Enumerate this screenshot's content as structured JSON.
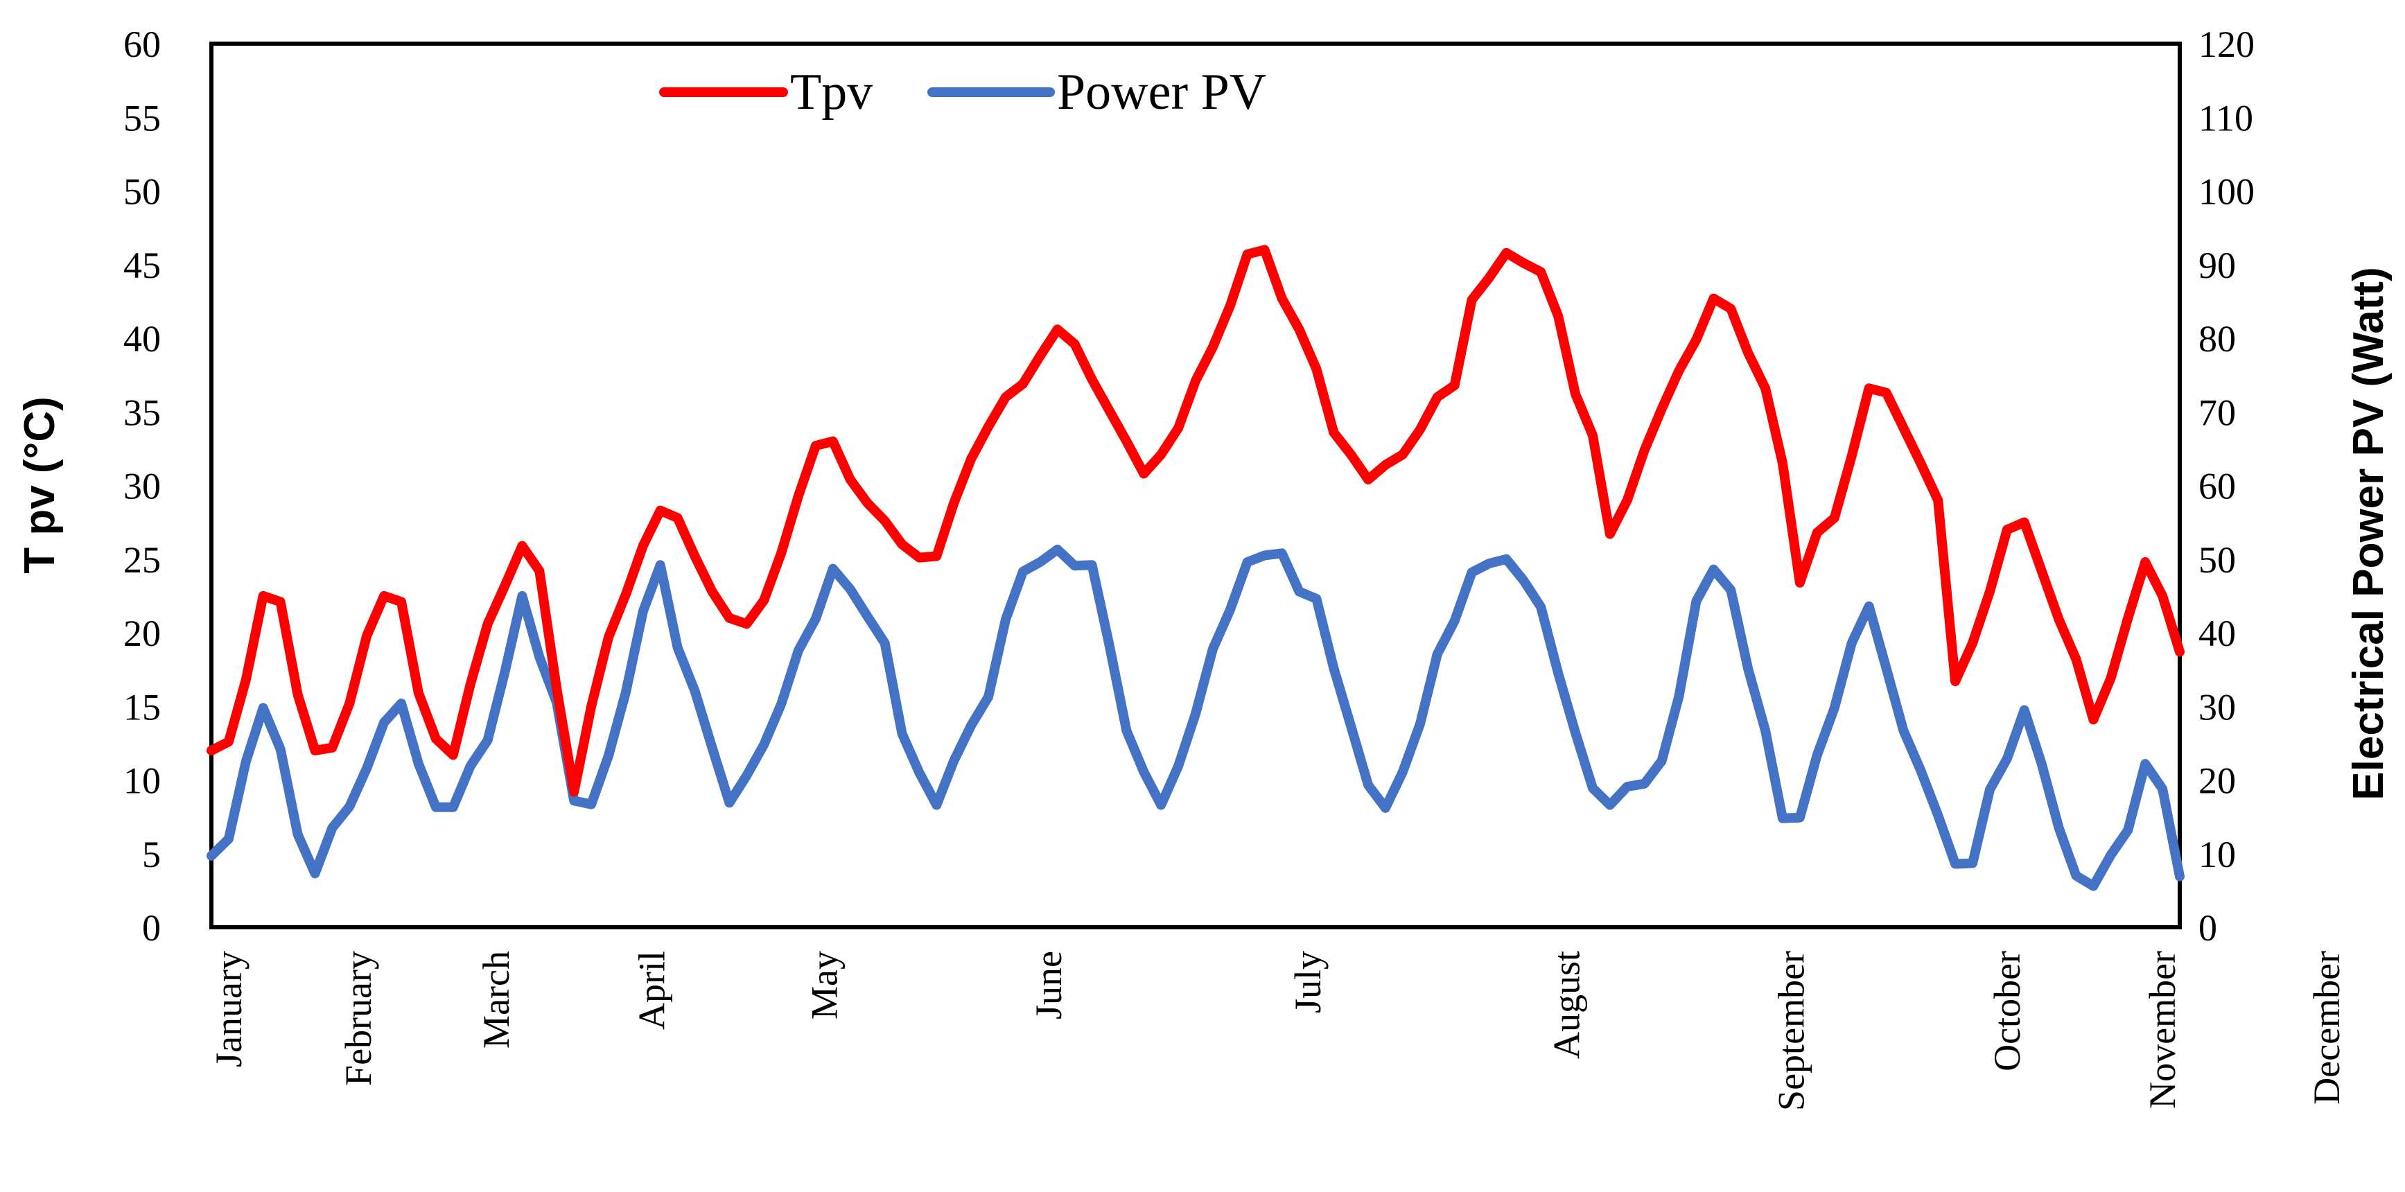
{
  "chart_data": {
    "type": "line",
    "ylabel": "T pv (°C)",
    "y2label": "Electrical Power PV (Watt)",
    "ylim": [
      0,
      60
    ],
    "y2lim": [
      0,
      120
    ],
    "yticks": [
      "0",
      "5",
      "10",
      "15",
      "20",
      "25",
      "30",
      "35",
      "40",
      "45",
      "50",
      "55",
      "60"
    ],
    "y2ticks": [
      "0",
      "10",
      "20",
      "30",
      "40",
      "50",
      "60",
      "70",
      "80",
      "90",
      "100",
      "110",
      "120"
    ],
    "months": [
      "January",
      "February",
      "March",
      "April",
      "May",
      "June",
      "July",
      "August",
      "September",
      "October",
      "November",
      "December"
    ],
    "month_positions": [
      1,
      8.5,
      16.5,
      25.5,
      35.5,
      48.5,
      63.5,
      78.5,
      91.5,
      104,
      113,
      122.5
    ],
    "grid": false,
    "legend_position": "top-center",
    "colors": {
      "tpv": "#ff0000",
      "power": "#4472c4"
    },
    "series": [
      {
        "name": "Tpv",
        "axis": "left",
        "values": [
          12.0,
          12.6,
          16.8,
          22.5,
          22.1,
          15.8,
          12.0,
          12.2,
          15.2,
          19.8,
          22.5,
          22.1,
          15.9,
          12.8,
          11.7,
          16.5,
          20.6,
          23.2,
          25.9,
          24.2,
          16.2,
          9.2,
          15.0,
          19.7,
          22.6,
          25.9,
          28.3,
          27.8,
          25.2,
          22.8,
          21.0,
          20.6,
          22.2,
          25.4,
          29.3,
          32.7,
          33.0,
          30.4,
          28.8,
          27.6,
          26.0,
          25.1,
          25.2,
          28.8,
          31.8,
          34.0,
          36.0,
          36.9,
          38.8,
          40.6,
          39.6,
          37.2,
          35.1,
          33.0,
          30.8,
          32.1,
          33.9,
          37.1,
          39.4,
          42.2,
          45.7,
          46.0,
          42.7,
          40.6,
          37.9,
          33.6,
          32.1,
          30.4,
          31.4,
          32.1,
          33.8,
          36.0,
          36.8,
          42.6,
          44.1,
          45.8,
          45.1,
          44.5,
          41.5,
          36.2,
          33.4,
          26.7,
          29.0,
          32.4,
          35.2,
          37.8,
          39.9,
          42.7,
          42.0,
          39.0,
          36.6,
          31.5,
          23.4,
          26.8,
          27.8,
          32.0,
          36.6,
          36.3,
          33.9,
          31.5,
          29.0,
          16.7,
          19.3,
          22.8,
          27.0,
          27.5,
          24.2,
          20.9,
          18.2,
          14.1,
          16.9,
          21.0,
          24.8,
          22.5,
          18.7
        ]
      },
      {
        "name": "Power PV",
        "axis": "right",
        "values": [
          9.7,
          12.0,
          22.5,
          29.8,
          24.2,
          12.6,
          7.3,
          13.5,
          16.4,
          21.6,
          27.8,
          30.4,
          22.2,
          16.3,
          16.3,
          21.9,
          25.4,
          34.7,
          45.0,
          36.7,
          30.5,
          17.2,
          16.7,
          23.3,
          31.9,
          42.9,
          49.2,
          38.0,
          32.1,
          24.4,
          16.9,
          20.6,
          24.8,
          30.3,
          37.6,
          41.9,
          48.7,
          45.9,
          42.2,
          38.6,
          26.3,
          21.0,
          16.6,
          22.6,
          27.4,
          31.3,
          41.8,
          48.3,
          49.6,
          51.3,
          49.1,
          49.2,
          38.4,
          26.7,
          21.1,
          16.6,
          21.9,
          29.0,
          37.8,
          43.1,
          49.6,
          50.5,
          50.8,
          45.6,
          44.6,
          35.2,
          27.3,
          19.3,
          16.2,
          21.1,
          27.6,
          37.1,
          41.6,
          48.2,
          49.4,
          50.0,
          47.1,
          43.5,
          34.5,
          26.4,
          18.9,
          16.6,
          19.1,
          19.5,
          22.6,
          31.4,
          44.3,
          48.6,
          45.8,
          35.1,
          26.7,
          14.8,
          14.9,
          23.4,
          29.8,
          38.6,
          43.6,
          35.2,
          26.7,
          21.3,
          15.2,
          8.6,
          8.7,
          18.7,
          22.9,
          29.5,
          22.2,
          13.5,
          7.0,
          5.6,
          9.8,
          13.2,
          22.2,
          18.8,
          6.9
        ]
      }
    ]
  }
}
